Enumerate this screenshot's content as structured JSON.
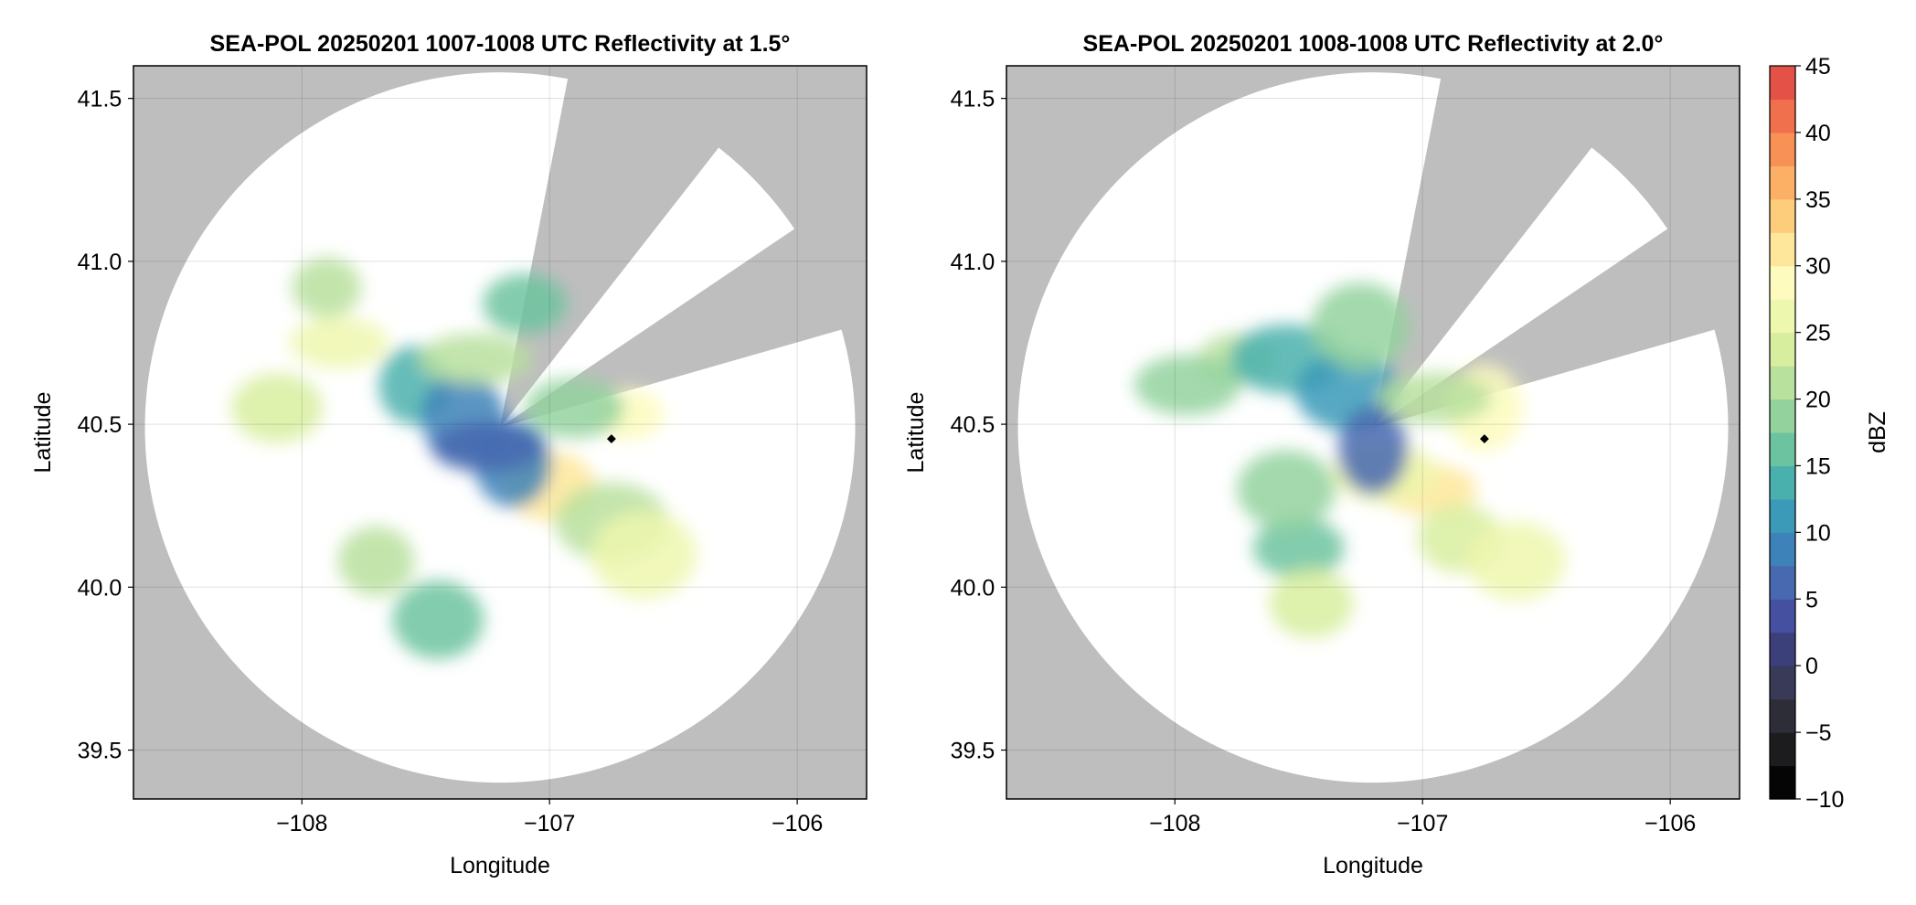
{
  "chart_data": [
    {
      "type": "heatmap",
      "title": "SEA-POL 20250201 1007-1008 UTC Reflectivity at 1.5°",
      "xlabel": "Longitude",
      "ylabel": "Latitude",
      "xlim": [
        -108.68,
        -105.72
      ],
      "ylim": [
        39.35,
        41.6
      ],
      "xticks": [
        -108,
        -107,
        -106
      ],
      "xtick_labels": [
        "−108",
        "−107",
        "−106"
      ],
      "yticks": [
        39.5,
        40.0,
        40.5,
        41.0,
        41.5
      ],
      "ytick_labels": [
        "39.5",
        "40.0",
        "40.5",
        "41.0",
        "41.5"
      ],
      "grid": true,
      "radar_center": [
        -107.2,
        40.49
      ],
      "coverage_radius_deg_lat": 1.09,
      "blocked_sectors_deg": [
        [
          11,
          38
        ],
        [
          56,
          74
        ]
      ],
      "marker": [
        -106.75,
        40.455
      ],
      "echo_cells": [
        {
          "lon": -107.85,
          "lat": 40.75,
          "value": 25
        },
        {
          "lon": -107.9,
          "lat": 40.92,
          "value": 21
        },
        {
          "lon": -108.1,
          "lat": 40.55,
          "value": 24
        },
        {
          "lon": -107.55,
          "lat": 40.62,
          "value": 14
        },
        {
          "lon": -107.35,
          "lat": 40.52,
          "value": 9
        },
        {
          "lon": -107.3,
          "lat": 40.7,
          "value": 20
        },
        {
          "lon": -107.1,
          "lat": 40.87,
          "value": 16
        },
        {
          "lon": -107.0,
          "lat": 40.31,
          "value": 31
        },
        {
          "lon": -106.75,
          "lat": 40.2,
          "value": 20
        },
        {
          "lon": -106.62,
          "lat": 40.1,
          "value": 26
        },
        {
          "lon": -106.68,
          "lat": 40.53,
          "value": 28
        },
        {
          "lon": -106.9,
          "lat": 40.55,
          "value": 18
        },
        {
          "lon": -107.7,
          "lat": 40.08,
          "value": 22
        },
        {
          "lon": -107.45,
          "lat": 39.9,
          "value": 17
        },
        {
          "lon": -107.15,
          "lat": 40.38,
          "value": 8
        },
        {
          "lon": -107.25,
          "lat": 40.43,
          "value": 6
        }
      ]
    },
    {
      "type": "heatmap",
      "title": "SEA-POL 20250201 1008-1008 UTC Reflectivity at 2.0°",
      "xlabel": "Longitude",
      "ylabel": "Latitude",
      "xlim": [
        -108.68,
        -105.72
      ],
      "ylim": [
        39.35,
        41.6
      ],
      "xticks": [
        -108,
        -107,
        -106
      ],
      "xtick_labels": [
        "−108",
        "−107",
        "−106"
      ],
      "yticks": [
        39.5,
        40.0,
        40.5,
        41.0,
        41.5
      ],
      "ytick_labels": [
        "39.5",
        "40.0",
        "40.5",
        "41.0",
        "41.5"
      ],
      "grid": true,
      "radar_center": [
        -107.2,
        40.49
      ],
      "coverage_radius_deg_lat": 1.09,
      "blocked_sectors_deg": [
        [
          11,
          38
        ],
        [
          56,
          74
        ]
      ],
      "marker": [
        -106.75,
        40.455
      ],
      "echo_cells": [
        {
          "lon": -107.75,
          "lat": 40.7,
          "value": 22
        },
        {
          "lon": -107.95,
          "lat": 40.62,
          "value": 19
        },
        {
          "lon": -107.55,
          "lat": 40.7,
          "value": 13
        },
        {
          "lon": -107.3,
          "lat": 40.6,
          "value": 12
        },
        {
          "lon": -107.25,
          "lat": 40.8,
          "value": 18
        },
        {
          "lon": -106.98,
          "lat": 40.3,
          "value": 32
        },
        {
          "lon": -107.15,
          "lat": 40.35,
          "value": 26
        },
        {
          "lon": -106.85,
          "lat": 40.15,
          "value": 23
        },
        {
          "lon": -106.62,
          "lat": 40.08,
          "value": 25
        },
        {
          "lon": -106.75,
          "lat": 40.55,
          "value": 29
        },
        {
          "lon": -106.95,
          "lat": 40.58,
          "value": 20
        },
        {
          "lon": -107.5,
          "lat": 40.12,
          "value": 17
        },
        {
          "lon": -107.45,
          "lat": 39.95,
          "value": 23
        },
        {
          "lon": -107.55,
          "lat": 40.3,
          "value": 18
        },
        {
          "lon": -107.2,
          "lat": 40.42,
          "value": 7
        }
      ]
    }
  ],
  "colorbar": {
    "label": "dBZ",
    "vmin": -10,
    "vmax": 45,
    "step": 2.5,
    "tick_values": [
      -10,
      -5,
      0,
      5,
      10,
      15,
      20,
      25,
      30,
      35,
      40,
      45
    ],
    "tick_labels": [
      "−10",
      "−5",
      "0",
      "5",
      "10",
      "15",
      "20",
      "25",
      "30",
      "35",
      "40",
      "45"
    ],
    "colors": [
      "#050505",
      "#1c1c1f",
      "#2d2d38",
      "#383a58",
      "#3b3f7a",
      "#4650a0",
      "#4868b0",
      "#3d82b8",
      "#3a9ab8",
      "#4ab0ad",
      "#6cc39f",
      "#93d29d",
      "#b8e19e",
      "#d8ee9f",
      "#eef7ae",
      "#fdfbbd",
      "#fee79a",
      "#fdcd7c",
      "#fbb066",
      "#f79156",
      "#f0704d",
      "#e35147",
      "#d23648",
      "#c0204f",
      "#c62f6f",
      "#d74a93",
      "#e673b0",
      "#ef9ccb",
      "#e8b7dc",
      "#c59ad0",
      "#a57ac0",
      "#7e4fa3",
      "#5a2a82",
      "#3a0c5e"
    ]
  },
  "colors": {
    "outside_coverage": "#bebebe",
    "no_echo": "#ffffff",
    "marker": "#000000"
  }
}
